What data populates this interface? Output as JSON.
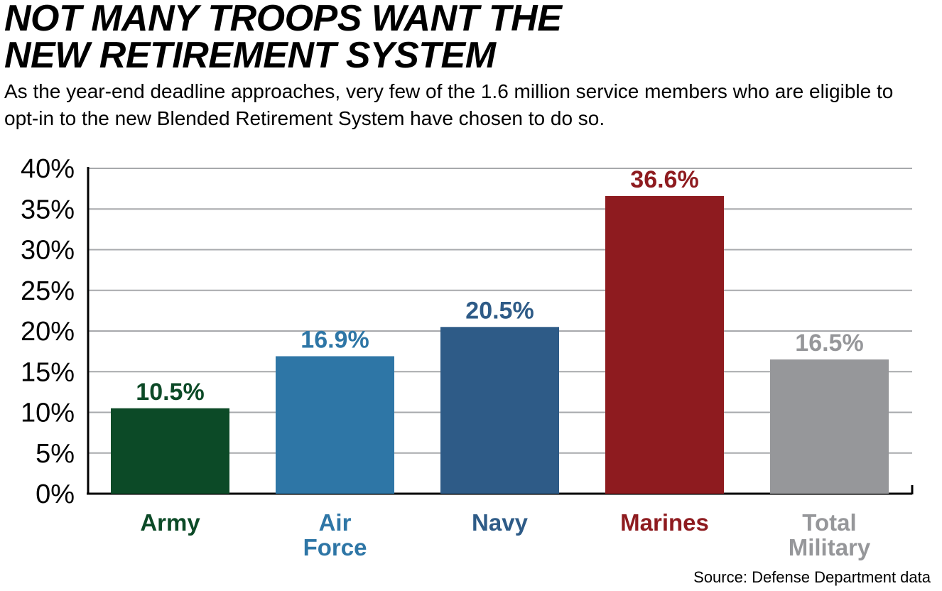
{
  "title_lines": [
    "NOT MANY TROOPS WANT THE",
    "NEW RETIREMENT SYSTEM"
  ],
  "subtitle": "As the year-end deadline approaches, very few of the 1.6 million service members who are eligible to opt-in to the new Blended Retirement System have chosen to do so.",
  "source": "Source: Defense Department data",
  "chart_data": {
    "type": "bar",
    "categories": [
      [
        "Army"
      ],
      [
        "Air",
        "Force"
      ],
      [
        "Navy"
      ],
      [
        "Marines"
      ],
      [
        "Total",
        "Military"
      ]
    ],
    "values": [
      10.5,
      16.9,
      20.5,
      36.6,
      16.5
    ],
    "value_labels": [
      "10.5%",
      "16.9%",
      "20.5%",
      "36.6%",
      "16.5%"
    ],
    "colors": [
      "#0c4a27",
      "#2e76a6",
      "#2e5b87",
      "#8e1b1f",
      "#96979a"
    ],
    "yticks": [
      "0%",
      "5%",
      "10%",
      "15%",
      "20%",
      "25%",
      "30%",
      "35%",
      "40%"
    ],
    "ylim": [
      0,
      40
    ],
    "grid": true
  }
}
